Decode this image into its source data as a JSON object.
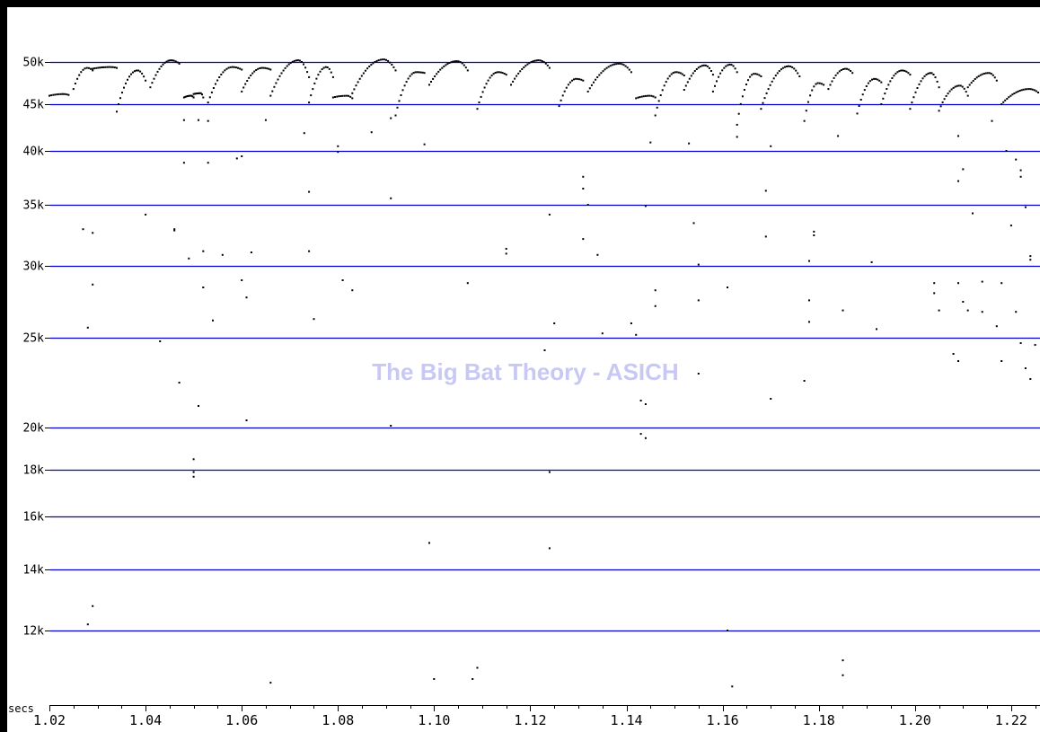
{
  "chart_data": {
    "type": "scatter",
    "title": "",
    "watermark": "The Big Bat Theory - ASICH",
    "xlabel": "secs",
    "ylabel": "",
    "x_scale": "linear",
    "y_scale": "frequency (non-linear)",
    "xlim": [
      1.02,
      1.226
    ],
    "y_ticks": [
      {
        "value": 50000,
        "label": "50k"
      },
      {
        "value": 45000,
        "label": "45k"
      },
      {
        "value": 40000,
        "label": "40k"
      },
      {
        "value": 35000,
        "label": "35k"
      },
      {
        "value": 30000,
        "label": "30k"
      },
      {
        "value": 25000,
        "label": "25k"
      },
      {
        "value": 20000,
        "label": "20k"
      },
      {
        "value": 18000,
        "label": "18k"
      },
      {
        "value": 16000,
        "label": "16k"
      },
      {
        "value": 14000,
        "label": "14k"
      },
      {
        "value": 12000,
        "label": "12k"
      }
    ],
    "x_ticks": [
      {
        "value": 1.02,
        "label": "1.02"
      },
      {
        "value": 1.04,
        "label": "1.04"
      },
      {
        "value": 1.06,
        "label": "1.06"
      },
      {
        "value": 1.08,
        "label": "1.08"
      },
      {
        "value": 1.1,
        "label": "1.10"
      },
      {
        "value": 1.12,
        "label": "1.12"
      },
      {
        "value": 1.14,
        "label": "1.14"
      },
      {
        "value": 1.16,
        "label": "1.16"
      },
      {
        "value": 1.18,
        "label": "1.18"
      },
      {
        "value": 1.2,
        "label": "1.20"
      },
      {
        "value": 1.22,
        "label": "1.22"
      }
    ],
    "grid": "horizontal",
    "grid_color": "#0000cc",
    "point_color": "#000000",
    "calls": [
      {
        "start": 1.02,
        "end": 1.024,
        "f_start": 46000,
        "f_peak": 46200,
        "f_end": 46100
      },
      {
        "start": 1.025,
        "end": 1.029,
        "f_start": 46800,
        "f_peak": 49300,
        "f_end": 49000
      },
      {
        "start": 1.029,
        "end": 1.034,
        "f_start": 49200,
        "f_peak": 49400,
        "f_end": 49300
      },
      {
        "start": 1.034,
        "end": 1.04,
        "f_start": 44200,
        "f_peak": 49000,
        "f_end": 47800
      },
      {
        "start": 1.041,
        "end": 1.047,
        "f_start": 47000,
        "f_peak": 50200,
        "f_end": 49800
      },
      {
        "start": 1.048,
        "end": 1.05,
        "f_start": 45800,
        "f_peak": 46000,
        "f_end": 45800
      },
      {
        "start": 1.05,
        "end": 1.052,
        "f_start": 46200,
        "f_peak": 46300,
        "f_end": 45800
      },
      {
        "start": 1.053,
        "end": 1.06,
        "f_start": 45200,
        "f_peak": 49400,
        "f_end": 49100
      },
      {
        "start": 1.06,
        "end": 1.066,
        "f_start": 46500,
        "f_peak": 49300,
        "f_end": 49100
      },
      {
        "start": 1.066,
        "end": 1.074,
        "f_start": 46000,
        "f_peak": 50200,
        "f_end": 48200
      },
      {
        "start": 1.074,
        "end": 1.079,
        "f_start": 45200,
        "f_peak": 49400,
        "f_end": 48200
      },
      {
        "start": 1.079,
        "end": 1.083,
        "f_start": 45800,
        "f_peak": 46000,
        "f_end": 45700
      },
      {
        "start": 1.083,
        "end": 1.092,
        "f_start": 46300,
        "f_peak": 50300,
        "f_end": 49000
      },
      {
        "start": 1.092,
        "end": 1.098,
        "f_start": 43800,
        "f_peak": 48800,
        "f_end": 48700
      },
      {
        "start": 1.099,
        "end": 1.107,
        "f_start": 47300,
        "f_peak": 50100,
        "f_end": 49000
      },
      {
        "start": 1.109,
        "end": 1.115,
        "f_start": 44500,
        "f_peak": 48800,
        "f_end": 48500
      },
      {
        "start": 1.116,
        "end": 1.124,
        "f_start": 47300,
        "f_peak": 50200,
        "f_end": 49300
      },
      {
        "start": 1.126,
        "end": 1.131,
        "f_start": 44800,
        "f_peak": 48000,
        "f_end": 47800
      },
      {
        "start": 1.132,
        "end": 1.141,
        "f_start": 46500,
        "f_peak": 49800,
        "f_end": 48800
      },
      {
        "start": 1.142,
        "end": 1.146,
        "f_start": 45700,
        "f_peak": 46000,
        "f_end": 45800
      },
      {
        "start": 1.146,
        "end": 1.152,
        "f_start": 43800,
        "f_peak": 48800,
        "f_end": 48400
      },
      {
        "start": 1.152,
        "end": 1.158,
        "f_start": 46700,
        "f_peak": 49600,
        "f_end": 48500
      },
      {
        "start": 1.158,
        "end": 1.163,
        "f_start": 46500,
        "f_peak": 49700,
        "f_end": 48800
      },
      {
        "start": 1.163,
        "end": 1.168,
        "f_start": 42800,
        "f_peak": 48600,
        "f_end": 48300
      },
      {
        "start": 1.168,
        "end": 1.176,
        "f_start": 44500,
        "f_peak": 49500,
        "f_end": 48300
      },
      {
        "start": 1.177,
        "end": 1.181,
        "f_start": 43200,
        "f_peak": 47500,
        "f_end": 47300
      },
      {
        "start": 1.182,
        "end": 1.187,
        "f_start": 46800,
        "f_peak": 49200,
        "f_end": 48700
      },
      {
        "start": 1.188,
        "end": 1.193,
        "f_start": 44000,
        "f_peak": 48000,
        "f_end": 47600
      },
      {
        "start": 1.193,
        "end": 1.199,
        "f_start": 45000,
        "f_peak": 49000,
        "f_end": 48500
      },
      {
        "start": 1.199,
        "end": 1.205,
        "f_start": 44500,
        "f_peak": 48700,
        "f_end": 47000
      },
      {
        "start": 1.205,
        "end": 1.211,
        "f_start": 44300,
        "f_peak": 47200,
        "f_end": 46000
      },
      {
        "start": 1.211,
        "end": 1.217,
        "f_start": 47000,
        "f_peak": 48700,
        "f_end": 47800
      },
      {
        "start": 1.218,
        "end": 1.226,
        "f_start": 45000,
        "f_peak": 46800,
        "f_end": 46200
      }
    ],
    "scatter": [
      [
        1.027,
        33000
      ],
      [
        1.028,
        25700
      ],
      [
        1.029,
        28700
      ],
      [
        1.029,
        32700
      ],
      [
        1.028,
        12200
      ],
      [
        1.029,
        12800
      ],
      [
        1.04,
        34200
      ],
      [
        1.043,
        24800
      ],
      [
        1.046,
        32900
      ],
      [
        1.046,
        33000
      ],
      [
        1.047,
        22500
      ],
      [
        1.048,
        43300
      ],
      [
        1.048,
        38900
      ],
      [
        1.049,
        30600
      ],
      [
        1.05,
        17700
      ],
      [
        1.05,
        17900
      ],
      [
        1.05,
        18500
      ],
      [
        1.051,
        21200
      ],
      [
        1.051,
        43300
      ],
      [
        1.052,
        28500
      ],
      [
        1.052,
        31200
      ],
      [
        1.053,
        43200
      ],
      [
        1.053,
        38900
      ],
      [
        1.054,
        26200
      ],
      [
        1.056,
        30900
      ],
      [
        1.059,
        39300
      ],
      [
        1.06,
        39500
      ],
      [
        1.06,
        29000
      ],
      [
        1.061,
        27800
      ],
      [
        1.061,
        20400
      ],
      [
        1.062,
        31100
      ],
      [
        1.065,
        43300
      ],
      [
        1.066,
        10600
      ],
      [
        1.074,
        36200
      ],
      [
        1.074,
        31200
      ],
      [
        1.075,
        26300
      ],
      [
        1.073,
        41900
      ],
      [
        1.08,
        40500
      ],
      [
        1.08,
        39900
      ],
      [
        1.081,
        29000
      ],
      [
        1.083,
        28300
      ],
      [
        1.087,
        42000
      ],
      [
        1.091,
        43500
      ],
      [
        1.091,
        35600
      ],
      [
        1.091,
        20100
      ],
      [
        1.098,
        40700
      ],
      [
        1.099,
        15000
      ],
      [
        1.1,
        10700
      ],
      [
        1.107,
        28800
      ],
      [
        1.108,
        10700
      ],
      [
        1.109,
        11000
      ],
      [
        1.115,
        31400
      ],
      [
        1.115,
        31000
      ],
      [
        1.123,
        24300
      ],
      [
        1.124,
        34200
      ],
      [
        1.124,
        17900
      ],
      [
        1.124,
        14800
      ],
      [
        1.125,
        26000
      ],
      [
        1.131,
        37600
      ],
      [
        1.131,
        36500
      ],
      [
        1.131,
        32200
      ],
      [
        1.132,
        35000
      ],
      [
        1.134,
        30900
      ],
      [
        1.135,
        25300
      ],
      [
        1.141,
        26000
      ],
      [
        1.142,
        25200
      ],
      [
        1.143,
        21500
      ],
      [
        1.143,
        19700
      ],
      [
        1.144,
        19500
      ],
      [
        1.144,
        21300
      ],
      [
        1.145,
        40900
      ],
      [
        1.146,
        28300
      ],
      [
        1.146,
        27200
      ],
      [
        1.144,
        34900
      ],
      [
        1.153,
        40800
      ],
      [
        1.154,
        33500
      ],
      [
        1.155,
        27600
      ],
      [
        1.155,
        23000
      ],
      [
        1.155,
        30100
      ],
      [
        1.161,
        28500
      ],
      [
        1.161,
        12000
      ],
      [
        1.162,
        10500
      ],
      [
        1.163,
        41500
      ],
      [
        1.169,
        36300
      ],
      [
        1.169,
        32400
      ],
      [
        1.17,
        21600
      ],
      [
        1.17,
        40500
      ],
      [
        1.177,
        22600
      ],
      [
        1.178,
        27600
      ],
      [
        1.178,
        26100
      ],
      [
        1.178,
        30400
      ],
      [
        1.179,
        32500
      ],
      [
        1.179,
        32800
      ],
      [
        1.184,
        41600
      ],
      [
        1.185,
        26900
      ],
      [
        1.185,
        10800
      ],
      [
        1.185,
        11200
      ],
      [
        1.191,
        30300
      ],
      [
        1.192,
        25600
      ],
      [
        1.204,
        28800
      ],
      [
        1.204,
        28100
      ],
      [
        1.205,
        26900
      ],
      [
        1.209,
        41600
      ],
      [
        1.209,
        37200
      ],
      [
        1.21,
        38300
      ],
      [
        1.209,
        28800
      ],
      [
        1.21,
        27500
      ],
      [
        1.211,
        26900
      ],
      [
        1.208,
        24100
      ],
      [
        1.209,
        23700
      ],
      [
        1.212,
        34300
      ],
      [
        1.214,
        28900
      ],
      [
        1.214,
        26800
      ],
      [
        1.216,
        43200
      ],
      [
        1.217,
        25800
      ],
      [
        1.218,
        28800
      ],
      [
        1.218,
        23700
      ],
      [
        1.219,
        40000
      ],
      [
        1.22,
        33300
      ],
      [
        1.221,
        39200
      ],
      [
        1.222,
        38200
      ],
      [
        1.222,
        37600
      ],
      [
        1.223,
        34800
      ],
      [
        1.224,
        30800
      ],
      [
        1.224,
        30500
      ],
      [
        1.223,
        23300
      ],
      [
        1.224,
        22700
      ],
      [
        1.225,
        24600
      ],
      [
        1.226,
        27600
      ],
      [
        1.226,
        26400
      ],
      [
        1.226,
        41200
      ],
      [
        1.226,
        43500
      ],
      [
        1.221,
        26800
      ],
      [
        1.222,
        24700
      ]
    ]
  }
}
